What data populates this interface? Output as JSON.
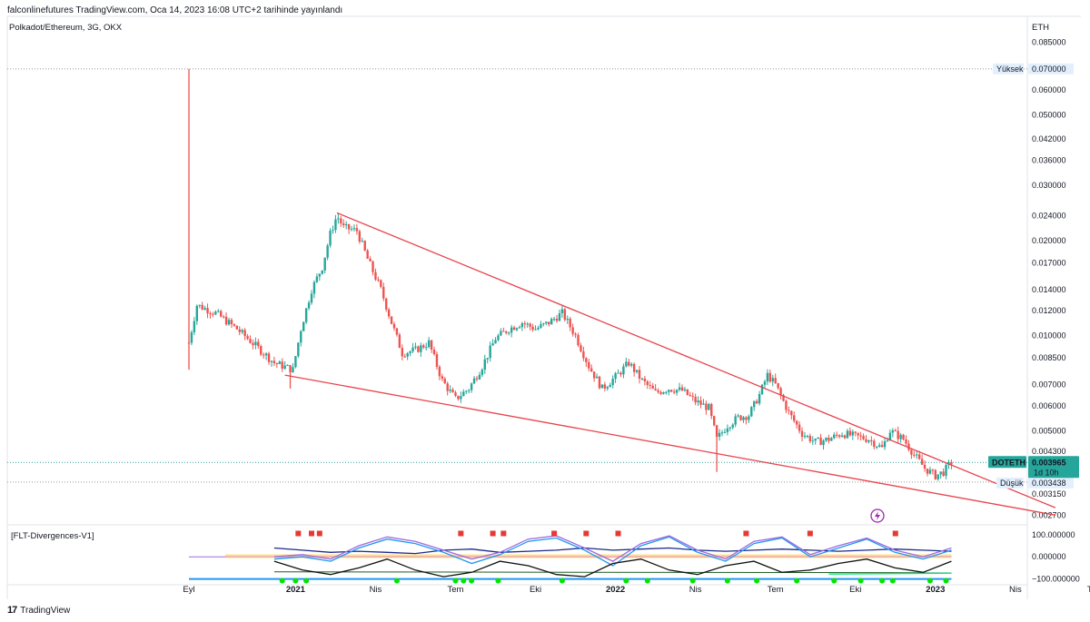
{
  "header": {
    "published_line": "falconlinefutures TradingView.com, Oca 14, 2023 16:08 UTC+2 tarihinde yayınlandı",
    "symbol_line": "Polkadot/Ethereum, 3G, OKX",
    "currency": "ETH",
    "indicator_name": "[FLT-Divergences-V1]",
    "footer_brand": "TradingView"
  },
  "colors": {
    "up": "#26a69a",
    "down": "#ef5350",
    "trendline": "#e8434d",
    "label_bg": "#e3effd",
    "last_price_bg": "#26a69a"
  },
  "chart_data": [
    {
      "type": "candlestick",
      "scale": "log",
      "ylim": [
        0.0026,
        0.09
      ],
      "y_ticks": [
        "0.085000",
        "0.070000",
        "0.060000",
        "0.050000",
        "0.042000",
        "0.036000",
        "0.030000",
        "0.024000",
        "0.020000",
        "0.017000",
        "0.014000",
        "0.012000",
        "0.010000",
        "0.008500",
        "0.007000",
        "0.006000",
        "0.005000",
        "0.004300",
        "0.003965",
        "0.003438",
        "0.003150",
        "0.002700"
      ],
      "x_ticks": [
        {
          "label": "Eyl",
          "month": 0,
          "bold": false
        },
        {
          "label": "2021",
          "month": 4,
          "bold": true
        },
        {
          "label": "Nis",
          "month": 7,
          "bold": false
        },
        {
          "label": "Tem",
          "month": 10,
          "bold": false
        },
        {
          "label": "Eki",
          "month": 13,
          "bold": false
        },
        {
          "label": "2022",
          "month": 16,
          "bold": true
        },
        {
          "label": "Nis",
          "month": 19,
          "bold": false
        },
        {
          "label": "Tem",
          "month": 22,
          "bold": false
        },
        {
          "label": "Eki",
          "month": 25,
          "bold": false
        },
        {
          "label": "2023",
          "month": 28,
          "bold": true
        },
        {
          "label": "Nis",
          "month": 31,
          "bold": false
        },
        {
          "label": "Tem",
          "month": 34,
          "bold": false
        }
      ],
      "high_label": "Yüksek",
      "high_value": 0.07,
      "low_label": "Düşük",
      "low_value": 0.003438,
      "last_symbol": "DOTETH",
      "last_price": 0.003965,
      "last_countdown": "1d 10h",
      "price_path": [
        [
          0.0,
          0.0095
        ],
        [
          0.3,
          0.0125
        ],
        [
          1.0,
          0.0118
        ],
        [
          1.8,
          0.0105
        ],
        [
          2.5,
          0.0093
        ],
        [
          3.2,
          0.0082
        ],
        [
          3.9,
          0.0078
        ],
        [
          4.2,
          0.0105
        ],
        [
          4.6,
          0.014
        ],
        [
          5.0,
          0.0165
        ],
        [
          5.3,
          0.021
        ],
        [
          5.55,
          0.024
        ],
        [
          5.8,
          0.022
        ],
        [
          6.3,
          0.0215
        ],
        [
          6.7,
          0.0175
        ],
        [
          7.2,
          0.014
        ],
        [
          7.6,
          0.011
        ],
        [
          8.0,
          0.0088
        ],
        [
          8.5,
          0.009
        ],
        [
          9.0,
          0.0095
        ],
        [
          9.5,
          0.0072
        ],
        [
          10.0,
          0.0063
        ],
        [
          10.5,
          0.0068
        ],
        [
          11.0,
          0.008
        ],
        [
          11.5,
          0.0098
        ],
        [
          12.0,
          0.0105
        ],
        [
          12.5,
          0.011
        ],
        [
          13.0,
          0.0105
        ],
        [
          13.5,
          0.011
        ],
        [
          14.0,
          0.0118
        ],
        [
          14.5,
          0.01
        ],
        [
          15.0,
          0.008
        ],
        [
          15.5,
          0.0068
        ],
        [
          16.0,
          0.0074
        ],
        [
          16.5,
          0.0082
        ],
        [
          17.0,
          0.0072
        ],
        [
          17.5,
          0.0066
        ],
        [
          18.0,
          0.0068
        ],
        [
          18.5,
          0.0067
        ],
        [
          19.0,
          0.0062
        ],
        [
          19.5,
          0.0059
        ],
        [
          19.8,
          0.0047
        ],
        [
          20.2,
          0.0052
        ],
        [
          20.6,
          0.0055
        ],
        [
          21.0,
          0.0056
        ],
        [
          21.4,
          0.0065
        ],
        [
          21.7,
          0.0075
        ],
        [
          22.0,
          0.007
        ],
        [
          22.5,
          0.0057
        ],
        [
          23.0,
          0.0049
        ],
        [
          23.5,
          0.0046
        ],
        [
          24.0,
          0.0047
        ],
        [
          24.5,
          0.0049
        ],
        [
          25.0,
          0.0048
        ],
        [
          25.5,
          0.0047
        ],
        [
          26.0,
          0.0044
        ],
        [
          26.3,
          0.005
        ],
        [
          26.8,
          0.0047
        ],
        [
          27.2,
          0.0042
        ],
        [
          27.6,
          0.0038
        ],
        [
          28.0,
          0.0036
        ],
        [
          28.3,
          0.0037
        ],
        [
          28.6,
          0.003965
        ]
      ],
      "wicks": [
        {
          "month": 0.0,
          "high": 0.07,
          "low": 0.0078
        },
        {
          "month": 3.8,
          "high": 0.008,
          "low": 0.0068
        },
        {
          "month": 19.8,
          "high": 0.0052,
          "low": 0.0037
        }
      ],
      "trendlines": [
        {
          "from": [
            5.55,
            0.0245
          ],
          "to": [
            32.5,
            0.00285
          ]
        },
        {
          "from": [
            3.6,
            0.0075
          ],
          "to": [
            32.5,
            0.0027
          ]
        }
      ]
    },
    {
      "type": "line",
      "name": "[FLT-Divergences-V1]",
      "ylim": [
        -110,
        120
      ],
      "y_ticks": [
        100,
        0,
        -100
      ],
      "y_tick_labels": [
        "100.000000",
        "0.000000",
        "−100.000000"
      ],
      "series": [
        {
          "name": "",
          "color": "#1e2a8a",
          "values": [
            40,
            30,
            20,
            25,
            20,
            15,
            30,
            35,
            20,
            25,
            30,
            40,
            30,
            35,
            40,
            30,
            25,
            30,
            35,
            30,
            25,
            30,
            35,
            30,
            25
          ]
        },
        {
          "name": "",
          "color": "#2196f3",
          "values": [
            -10,
            0,
            -20,
            40,
            80,
            60,
            20,
            -30,
            10,
            70,
            85,
            30,
            -40,
            50,
            90,
            20,
            -20,
            60,
            85,
            0,
            40,
            80,
            20,
            -10,
            30
          ]
        },
        {
          "name": "",
          "color": "#9c6ade",
          "values": [
            0,
            10,
            -10,
            50,
            90,
            70,
            30,
            -10,
            20,
            80,
            95,
            40,
            -20,
            60,
            95,
            30,
            -10,
            70,
            90,
            10,
            50,
            85,
            30,
            0,
            40
          ]
        },
        {
          "name": "",
          "color": "#111111",
          "values": [
            -20,
            -60,
            -80,
            -50,
            -10,
            -60,
            -90,
            -70,
            -20,
            -40,
            -80,
            -90,
            -30,
            -10,
            -60,
            -80,
            -40,
            -20,
            -70,
            -60,
            -30,
            -10,
            -50,
            -70,
            -20
          ]
        }
      ],
      "signal_markers_top": [
        4.1,
        4.6,
        4.9,
        10.2,
        11.4,
        11.8,
        13.7,
        14.9,
        16.1,
        20.9,
        23.3,
        26.5
      ],
      "signal_markers_bottom": [
        3.5,
        4.0,
        4.4,
        7.8,
        10.0,
        10.3,
        10.6,
        11.6,
        14.0,
        16.4,
        17.2,
        18.9,
        20.2,
        21.3,
        22.8,
        24.2,
        25.2,
        26.0,
        26.4,
        27.8,
        28.4
      ]
    }
  ]
}
